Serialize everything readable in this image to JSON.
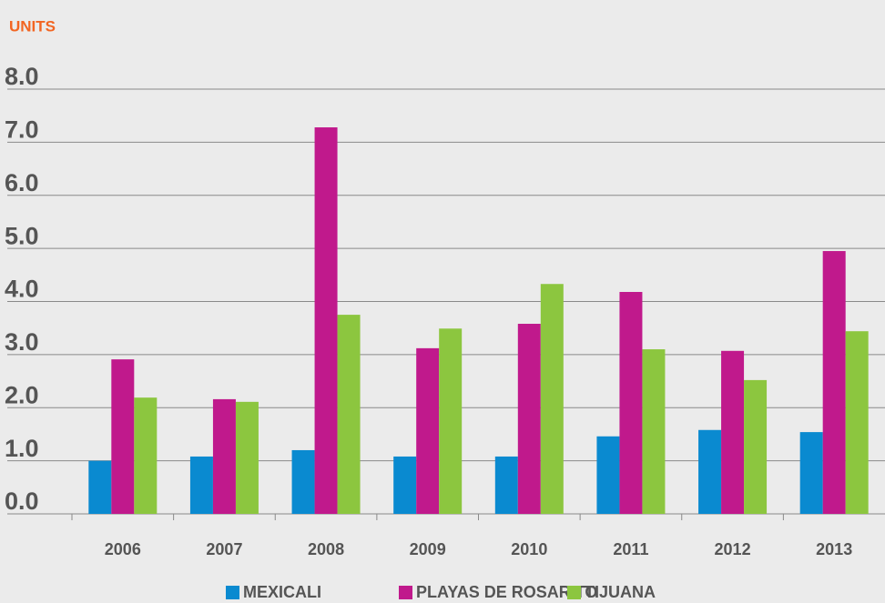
{
  "chart_data": {
    "type": "bar",
    "title": "UNITS",
    "categories": [
      "2006",
      "2007",
      "2008",
      "2009",
      "2010",
      "2011",
      "2012",
      "2013"
    ],
    "series": [
      {
        "name": "MEXICALI",
        "color": "#0a8ad0",
        "values": [
          1.0,
          1.08,
          1.2,
          1.08,
          1.08,
          1.46,
          1.58,
          1.54
        ]
      },
      {
        "name": "PLAYAS DE ROSARITO",
        "color": "#c0198c",
        "values": [
          2.91,
          2.16,
          7.28,
          3.12,
          3.58,
          4.18,
          3.07,
          4.95
        ]
      },
      {
        "name": "TIJUANA",
        "color": "#8cc63f",
        "values": [
          2.19,
          2.11,
          3.75,
          3.49,
          4.33,
          3.1,
          2.52,
          3.44
        ]
      }
    ],
    "ylim": [
      0,
      8
    ],
    "yticks": [
      {
        "value": 0,
        "label": "0.0"
      },
      {
        "value": 1,
        "label": "1.0"
      },
      {
        "value": 2,
        "label": "2.0"
      },
      {
        "value": 3,
        "label": "3.0"
      },
      {
        "value": 4,
        "label": "4.0"
      },
      {
        "value": 5,
        "label": "5.0"
      },
      {
        "value": 6,
        "label": "6.0"
      },
      {
        "value": 7,
        "label": "7.0"
      },
      {
        "value": 8,
        "label": "8.0"
      }
    ],
    "grid": true,
    "legend": "bottom",
    "title_color": "#f26522"
  }
}
